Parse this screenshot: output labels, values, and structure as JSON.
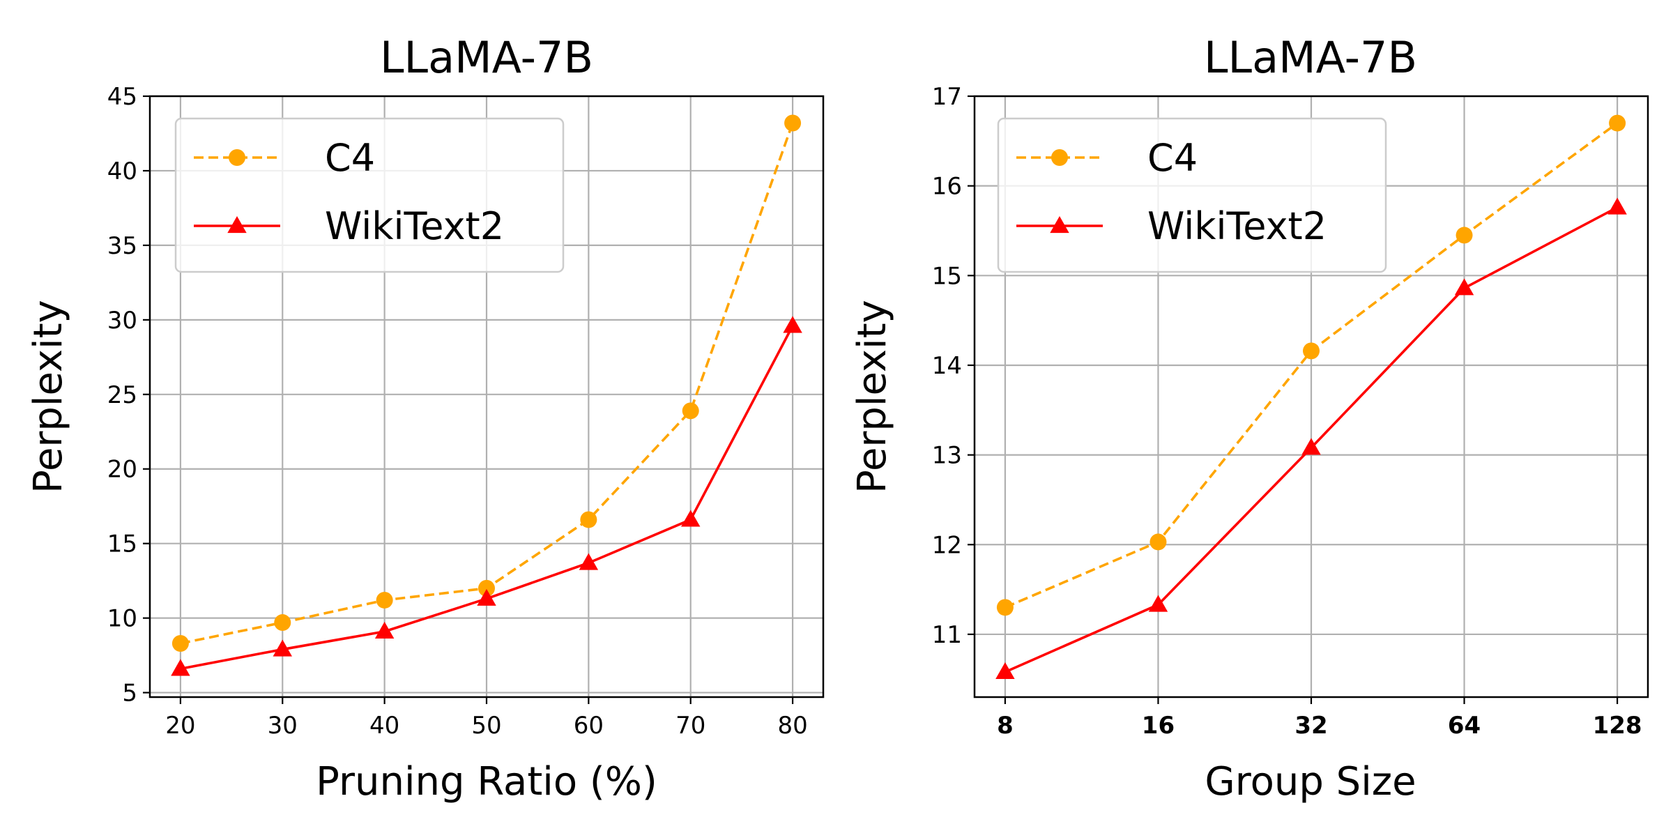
{
  "chart_data": [
    {
      "type": "line",
      "title": "LLaMA-7B",
      "xlabel": "Pruning Ratio (%)",
      "ylabel": "Perplexity",
      "x": [
        20,
        30,
        40,
        50,
        60,
        70,
        80
      ],
      "x_tick_labels": [
        "20",
        "30",
        "40",
        "50",
        "60",
        "70",
        "80"
      ],
      "x_tick_bold": false,
      "xlim": [
        17,
        83
      ],
      "ylim": [
        4.7,
        45
      ],
      "y_ticks": [
        5,
        10,
        15,
        20,
        25,
        30,
        35,
        40,
        45
      ],
      "grid": true,
      "legend_position": "top-left",
      "series": [
        {
          "name": "C4",
          "color": "#FFA500",
          "style": "dashed",
          "marker": "circle",
          "values": [
            8.3,
            9.7,
            11.2,
            12.0,
            16.6,
            23.9,
            43.2
          ]
        },
        {
          "name": "WikiText2",
          "color": "#FF0000",
          "style": "solid",
          "marker": "triangle",
          "values": [
            6.6,
            7.9,
            9.1,
            11.3,
            13.7,
            16.6,
            29.6
          ]
        }
      ]
    },
    {
      "type": "line",
      "title": "LLaMA-7B",
      "xlabel": "Group Size",
      "ylabel": "Perplexity",
      "x": [
        8,
        16,
        32,
        64,
        128
      ],
      "x_tick_labels": [
        "8",
        "16",
        "32",
        "64",
        "128"
      ],
      "x_tick_bold": true,
      "xlim": [
        -0.2,
        4.2
      ],
      "ylim": [
        10.3,
        17
      ],
      "y_ticks": [
        11,
        12,
        13,
        14,
        15,
        16,
        17
      ],
      "grid": true,
      "legend_position": "top-left",
      "series": [
        {
          "name": "C4",
          "color": "#FFA500",
          "style": "dashed",
          "marker": "circle",
          "values": [
            11.3,
            12.03,
            14.16,
            15.45,
            16.7
          ]
        },
        {
          "name": "WikiText2",
          "color": "#FF0000",
          "style": "solid",
          "marker": "triangle",
          "values": [
            10.58,
            11.33,
            13.08,
            14.86,
            15.76
          ]
        }
      ]
    }
  ]
}
